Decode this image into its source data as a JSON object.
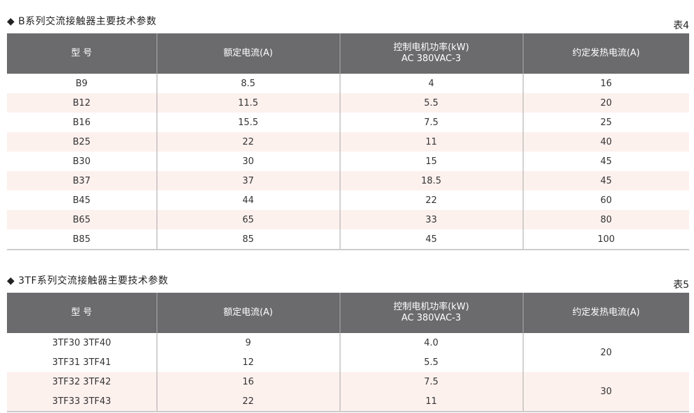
{
  "table4": {
    "title": "◆ B系列交流接触器主要技术参数",
    "number": "表4",
    "headers": [
      "型  号",
      "额定电流(A)",
      "控制电机功率(kW)",
      "AC 380VAC-3",
      "约定发热电流(A)"
    ],
    "rows": [
      [
        "B9",
        "8.5",
        "4",
        "16"
      ],
      [
        "B12",
        "11.5",
        "5.5",
        "20"
      ],
      [
        "B16",
        "15.5",
        "7.5",
        "25"
      ],
      [
        "B25",
        "22",
        "11",
        "40"
      ],
      [
        "B30",
        "30",
        "15",
        "45"
      ],
      [
        "B37",
        "37",
        "18.5",
        "45"
      ],
      [
        "B45",
        "44",
        "22",
        "60"
      ],
      [
        "B65",
        "65",
        "33",
        "80"
      ],
      [
        "B85",
        "85",
        "45",
        "100"
      ]
    ]
  },
  "table5": {
    "title": "◆ 3TF系列交流接触器主要技术参数",
    "number": "表5",
    "headers": [
      "型  号",
      "额定电流(A)",
      "控制电机功率(kW)",
      "AC 380VAC-3",
      "约定发热电流(A)"
    ],
    "rows": [
      [
        "3TF30 3TF40",
        "9",
        "4.0",
        "20"
      ],
      [
        "3TF31 3TF41",
        "12",
        "5.5",
        ""
      ],
      [
        "3TF32 3TF42",
        "16",
        "7.5",
        "30"
      ],
      [
        "3TF33 3TF43",
        "22",
        "11",
        ""
      ]
    ]
  },
  "colors": {
    "header_bg": "#6b6b6e",
    "alt_row": "#fdf1ee"
  }
}
